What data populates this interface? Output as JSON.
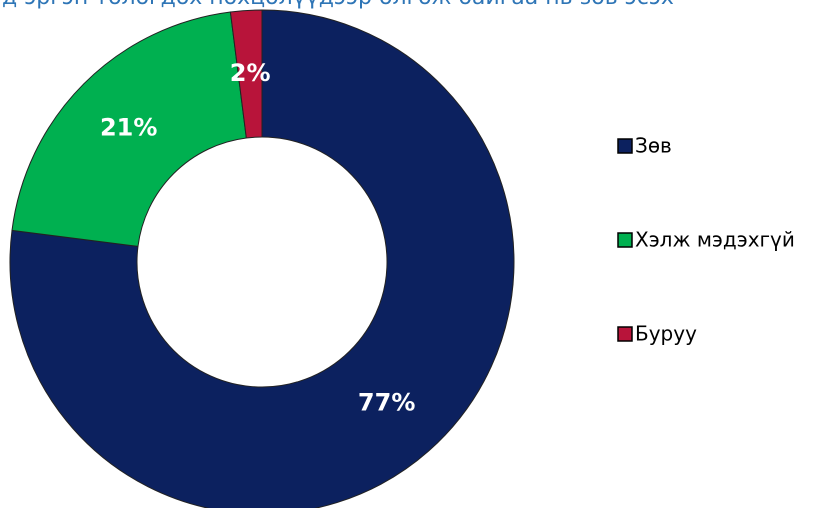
{
  "chart_data": {
    "type": "donut",
    "title": "д эргэн төлөгдөх нөхцөлүүдээр олгож байгаа нь зөв эсэх",
    "categories": [
      "Зөв",
      "Хэлж мэдэхгүй",
      "Буруу"
    ],
    "values": [
      77,
      21,
      2
    ],
    "value_labels": [
      "77%",
      "21%",
      "2%"
    ],
    "colors": [
      "#0c215f",
      "#00b050",
      "#b8143a"
    ],
    "legend": "right"
  }
}
